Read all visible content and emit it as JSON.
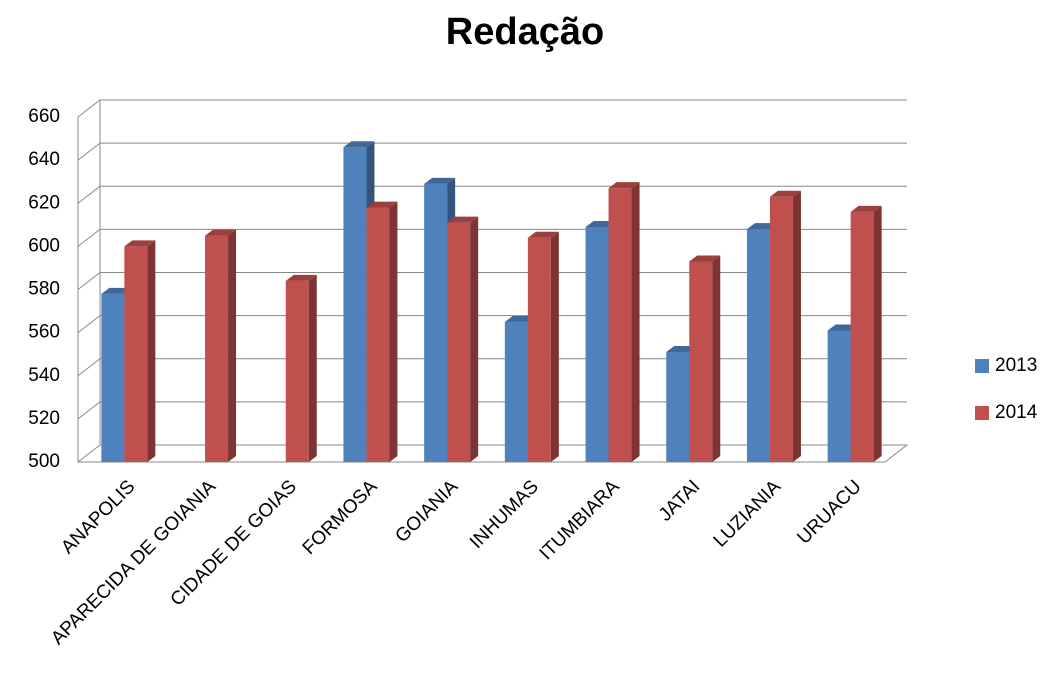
{
  "chart_data": {
    "type": "bar3d",
    "title": "Redação",
    "categories": [
      "ANAPOLIS",
      "APARECIDA DE GOIANIA",
      "CIDADE DE GOIAS",
      "FORMOSA",
      "GOIANIA",
      "INHUMAS",
      "ITUMBIARA",
      "JATAI",
      "LUZIANIA",
      "URUACU"
    ],
    "series": [
      {
        "name": "2013",
        "color": "#4f81bd",
        "values": [
          578,
          null,
          null,
          646,
          629,
          565,
          609,
          551,
          608,
          561
        ]
      },
      {
        "name": "2014",
        "color": "#c0504d",
        "values": [
          600,
          605,
          584,
          618,
          611,
          604,
          627,
          593,
          623,
          616
        ]
      }
    ],
    "ylim": [
      500,
      660
    ],
    "yticks": [
      500,
      520,
      540,
      560,
      580,
      600,
      620,
      640,
      660
    ],
    "grid": true,
    "legend": "right"
  }
}
